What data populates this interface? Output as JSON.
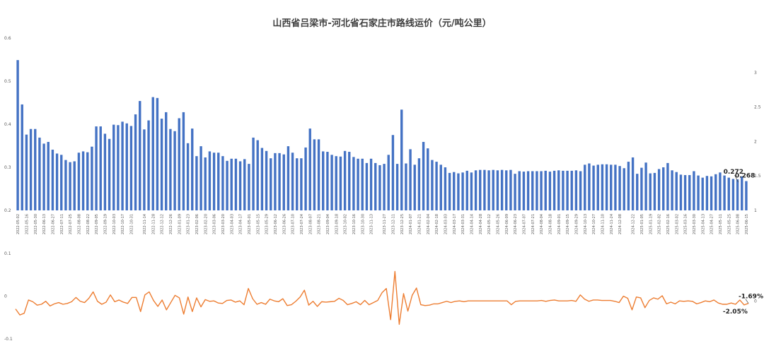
{
  "chart_data": [
    {
      "type": "bar",
      "title": "山西省吕梁市-河北省石家庄市路线运价（元/吨公里）",
      "color": "#4472C4",
      "ylim_left": [
        0.2,
        0.6
      ],
      "yticks_left": [
        "0.2",
        "0.3",
        "0.4",
        "0.5",
        "0.6"
      ],
      "ylim_right": [
        1,
        3.5
      ],
      "yticks_right": [
        "1",
        "1.5",
        "2",
        "2.5",
        "3"
      ],
      "x_tick_labels": [
        "2022-05-02",
        "2022-05-16",
        "2022-05-30",
        "2022-06-13",
        "2022-06-27",
        "2022-07-11",
        "2022-07-25",
        "2022-08-08",
        "2022-08-22",
        "2022-09-05",
        "2022-09-19",
        "2022-10-03",
        "2022-10-17",
        "2022-10-31",
        "2022-11-14",
        "2022-11-28",
        "2022-12-12",
        "2022-12-26",
        "2023-01-09",
        "2023-01-23",
        "2023-02-06",
        "2023-02-20",
        "2023-03-06",
        "2023-03-20",
        "2023-04-03",
        "2023-04-17",
        "2023-05-01",
        "2023-05-15",
        "2023-05-29",
        "2023-06-12",
        "2023-06-26",
        "2023-07-10",
        "2023-07-24",
        "2023-08-07",
        "2023-08-21",
        "2023-09-04",
        "2023-09-18",
        "2023-10-02",
        "2023-10-16",
        "2023-10-30",
        "2023-11-13",
        "2023-11-27",
        "2023-12-11",
        "2023-12-25",
        "2024-01-07",
        "2024-01-21",
        "2024-02-04",
        "2024-02-18",
        "2024-03-03",
        "2024-03-17",
        "2024-03-31",
        "2024-04-14",
        "2024-04-28",
        "2024-05-12",
        "2024-05-26",
        "2024-06-09",
        "2024-06-23",
        "2024-07-07",
        "2024-07-21",
        "2024-08-04",
        "2024-08-18",
        "2024-09-01",
        "2024-09-15",
        "2024-09-29",
        "2024-10-13",
        "2024-10-27",
        "2024-11-10",
        "2024-11-24",
        "2024-12-08",
        "2024-12-22",
        "2025-01-05",
        "2025-01-19",
        "2025-02-02",
        "2025-02-16",
        "2025-03-02",
        "2025-03-16",
        "2025-03-30",
        "2025-04-13",
        "2025-04-27",
        "2025-05-11",
        "2025-05-25",
        "2025-06-08",
        "2025-06-15"
      ],
      "values": [
        0.549,
        0.446,
        0.376,
        0.389,
        0.389,
        0.369,
        0.355,
        0.359,
        0.341,
        0.332,
        0.329,
        0.317,
        0.312,
        0.314,
        0.334,
        0.337,
        0.335,
        0.348,
        0.395,
        0.395,
        0.378,
        0.366,
        0.399,
        0.398,
        0.406,
        0.402,
        0.396,
        0.423,
        0.454,
        0.388,
        0.409,
        0.463,
        0.461,
        0.413,
        0.428,
        0.389,
        0.384,
        0.414,
        0.428,
        0.356,
        0.39,
        0.326,
        0.349,
        0.323,
        0.337,
        0.334,
        0.334,
        0.326,
        0.315,
        0.32,
        0.32,
        0.314,
        0.319,
        0.308,
        0.369,
        0.363,
        0.345,
        0.338,
        0.321,
        0.333,
        0.333,
        0.33,
        0.349,
        0.334,
        0.321,
        0.321,
        0.346,
        0.39,
        0.365,
        0.365,
        0.337,
        0.336,
        0.329,
        0.326,
        0.325,
        0.338,
        0.336,
        0.324,
        0.32,
        0.32,
        0.31,
        0.32,
        0.31,
        0.305,
        0.308,
        0.329,
        0.375,
        0.308,
        0.434,
        0.309,
        0.342,
        0.306,
        0.321,
        0.359,
        0.344,
        0.317,
        0.313,
        0.306,
        0.3,
        0.287,
        0.289,
        0.286,
        0.288,
        0.292,
        0.288,
        0.293,
        0.294,
        0.294,
        0.293,
        0.294,
        0.293,
        0.294,
        0.293,
        0.294,
        0.285,
        0.291,
        0.29,
        0.291,
        0.291,
        0.291,
        0.291,
        0.292,
        0.29,
        0.292,
        0.293,
        0.292,
        0.292,
        0.292,
        0.293,
        0.291,
        0.306,
        0.309,
        0.304,
        0.306,
        0.307,
        0.307,
        0.306,
        0.306,
        0.303,
        0.298,
        0.313,
        0.323,
        0.285,
        0.299,
        0.311,
        0.286,
        0.287,
        0.296,
        0.3,
        0.31,
        0.293,
        0.289,
        0.283,
        0.282,
        0.282,
        0.291,
        0.281,
        0.276,
        0.28,
        0.279,
        0.284,
        0.288,
        0.281,
        0.276,
        0.273,
        0.272,
        0.279,
        0.268
      ],
      "annotations": [
        "0.272",
        "0.268"
      ]
    },
    {
      "type": "line",
      "color": "#ED7D31",
      "ylim": [
        -0.1,
        0.1
      ],
      "yticks": [
        "-0.1",
        "0",
        "0.1"
      ],
      "values": [
        -0.03,
        -0.044,
        -0.04,
        -0.009,
        -0.013,
        -0.021,
        -0.019,
        -0.012,
        -0.023,
        -0.018,
        -0.015,
        -0.019,
        -0.017,
        -0.013,
        -0.003,
        -0.012,
        -0.015,
        -0.005,
        0.01,
        -0.012,
        -0.019,
        -0.014,
        0.003,
        -0.013,
        -0.009,
        -0.014,
        -0.017,
        -0.003,
        -0.003,
        -0.036,
        0.003,
        0.01,
        -0.01,
        -0.024,
        -0.009,
        -0.032,
        -0.015,
        0.002,
        -0.004,
        -0.042,
        -0.002,
        -0.036,
        -0.004,
        -0.025,
        -0.008,
        -0.012,
        -0.011,
        -0.016,
        -0.017,
        -0.01,
        -0.009,
        -0.014,
        -0.011,
        -0.02,
        0.018,
        -0.006,
        -0.019,
        -0.015,
        -0.019,
        -0.007,
        -0.011,
        -0.013,
        -0.006,
        -0.022,
        -0.02,
        -0.012,
        -0.002,
        0.014,
        -0.021,
        -0.012,
        -0.024,
        -0.013,
        -0.014,
        -0.013,
        -0.012,
        -0.005,
        -0.01,
        -0.02,
        -0.017,
        -0.013,
        -0.02,
        -0.01,
        -0.02,
        -0.015,
        -0.01,
        0.008,
        0.018,
        -0.055,
        0.058,
        -0.066,
        0.006,
        -0.035,
        0.002,
        0.019,
        -0.02,
        -0.022,
        -0.021,
        -0.018,
        -0.018,
        -0.015,
        -0.012,
        -0.015,
        -0.012,
        -0.011,
        -0.013,
        -0.011,
        -0.011,
        -0.011,
        -0.011,
        -0.011,
        -0.011,
        -0.011,
        -0.011,
        -0.011,
        -0.011,
        -0.02,
        -0.012,
        -0.011,
        -0.011,
        -0.011,
        -0.011,
        -0.011,
        -0.01,
        -0.012,
        -0.01,
        -0.009,
        -0.011,
        -0.011,
        -0.011,
        -0.01,
        -0.012,
        0.003,
        -0.007,
        -0.012,
        -0.009,
        -0.009,
        -0.01,
        -0.01,
        -0.01,
        -0.012,
        -0.015,
        0.0,
        -0.005,
        -0.032,
        -0.002,
        -0.004,
        -0.027,
        -0.01,
        -0.004,
        -0.007,
        0.001,
        -0.018,
        -0.014,
        -0.018,
        -0.011,
        -0.012,
        -0.011,
        -0.012,
        -0.018,
        -0.015,
        -0.011,
        -0.013,
        -0.009,
        -0.016,
        -0.019,
        -0.019,
        -0.016,
        -0.019,
        -0.009,
        -0.0205,
        -0.0169
      ],
      "annotations": [
        "-1.69%",
        "-2.05%"
      ]
    }
  ]
}
